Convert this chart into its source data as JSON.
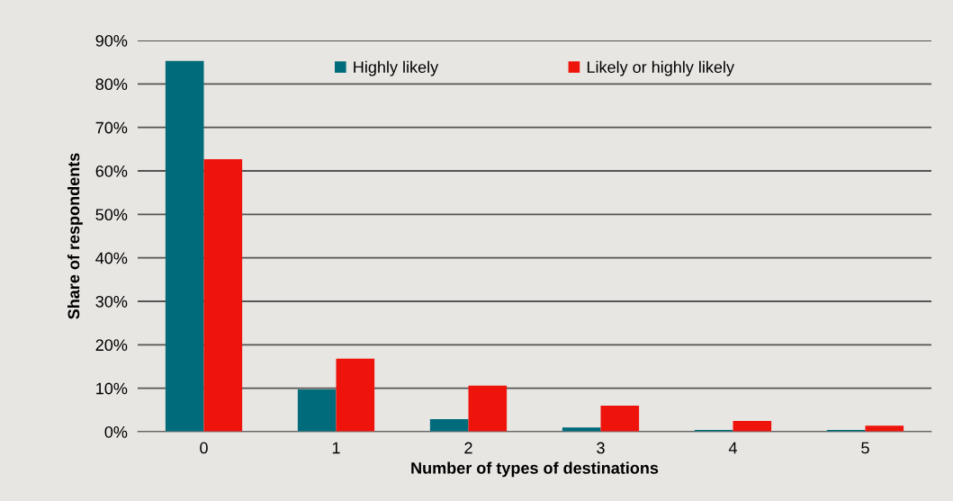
{
  "chart_data": {
    "type": "bar",
    "xlabel": "Number of types of destinations",
    "ylabel": "Share of respondents",
    "categories": [
      "0",
      "1",
      "2",
      "3",
      "4",
      "5"
    ],
    "series": [
      {
        "name": "Highly likely",
        "color": "#006b7a",
        "values": [
          85.3,
          9.7,
          2.9,
          1.0,
          0.4,
          0.4
        ]
      },
      {
        "name": "Likely or highly likely",
        "color": "#ee140c",
        "values": [
          62.7,
          16.8,
          10.6,
          6.0,
          2.5,
          1.4
        ]
      }
    ],
    "ylim": [
      0,
      90
    ],
    "yticks": [
      {
        "value": 0,
        "label": "0%"
      },
      {
        "value": 10,
        "label": "10%"
      },
      {
        "value": 20,
        "label": "20%"
      },
      {
        "value": 30,
        "label": "30%"
      },
      {
        "value": 40,
        "label": "40%"
      },
      {
        "value": 50,
        "label": "50%"
      },
      {
        "value": 60,
        "label": "60%"
      },
      {
        "value": 70,
        "label": "70%"
      },
      {
        "value": 80,
        "label": "80%"
      },
      {
        "value": 90,
        "label": "90%"
      }
    ],
    "grid": "y",
    "legend": "top"
  }
}
